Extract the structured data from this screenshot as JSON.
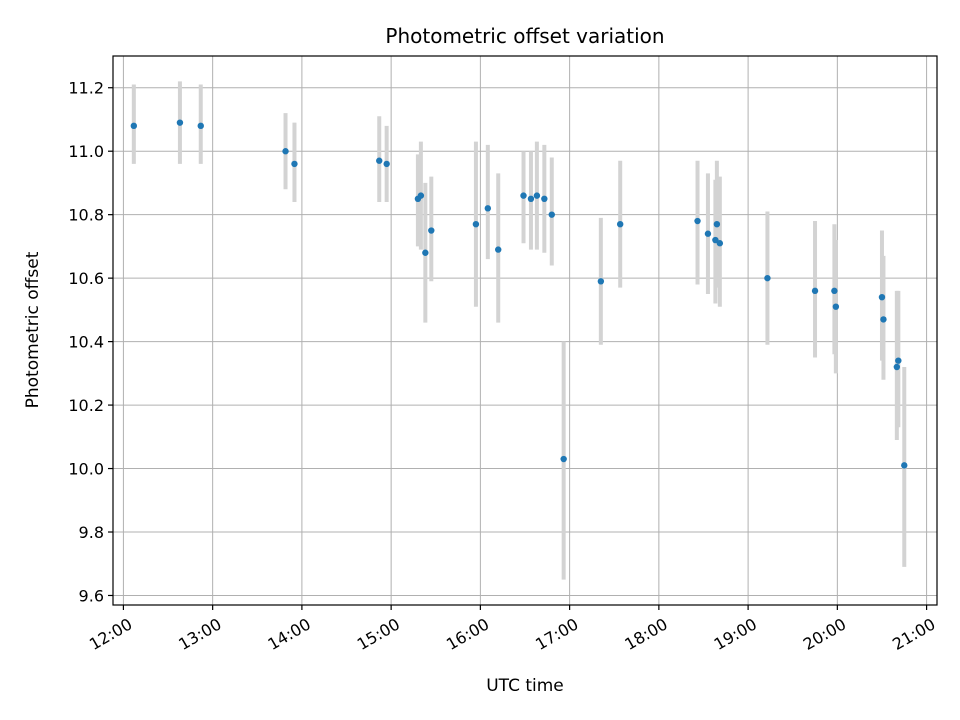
{
  "chart_data": {
    "type": "scatter",
    "title": "Photometric offset variation",
    "xlabel": "UTC time",
    "ylabel": "Photometric offset",
    "x_axis_type": "time",
    "xlim": [
      "11:53",
      "21:07"
    ],
    "ylim": [
      9.57,
      11.3
    ],
    "x_ticks": [
      "12:00",
      "13:00",
      "14:00",
      "15:00",
      "16:00",
      "17:00",
      "18:00",
      "19:00",
      "20:00",
      "21:00"
    ],
    "y_ticks": [
      9.6,
      9.8,
      10.0,
      10.2,
      10.4,
      10.6,
      10.8,
      11.0,
      11.2
    ],
    "grid": true,
    "colors": {
      "marker": "#1f77b4",
      "error_bar": "#d3d3d3",
      "grid": "#b0b0b0"
    },
    "points": [
      {
        "t": "12:07",
        "y": 11.08,
        "lo": 10.96,
        "hi": 11.21
      },
      {
        "t": "12:38",
        "y": 11.09,
        "lo": 10.96,
        "hi": 11.22
      },
      {
        "t": "12:52",
        "y": 11.08,
        "lo": 10.96,
        "hi": 11.21
      },
      {
        "t": "13:49",
        "y": 11.0,
        "lo": 10.88,
        "hi": 11.12
      },
      {
        "t": "13:55",
        "y": 10.96,
        "lo": 10.84,
        "hi": 11.09
      },
      {
        "t": "14:52",
        "y": 10.97,
        "lo": 10.84,
        "hi": 11.11
      },
      {
        "t": "14:57",
        "y": 10.96,
        "lo": 10.84,
        "hi": 11.08
      },
      {
        "t": "15:18",
        "y": 10.85,
        "lo": 10.7,
        "hi": 10.99
      },
      {
        "t": "15:20",
        "y": 10.86,
        "lo": 10.69,
        "hi": 11.03
      },
      {
        "t": "15:23",
        "y": 10.68,
        "lo": 10.46,
        "hi": 10.9
      },
      {
        "t": "15:27",
        "y": 10.75,
        "lo": 10.59,
        "hi": 10.92
      },
      {
        "t": "15:57",
        "y": 10.77,
        "lo": 10.51,
        "hi": 11.03
      },
      {
        "t": "16:05",
        "y": 10.82,
        "lo": 10.66,
        "hi": 11.02
      },
      {
        "t": "16:12",
        "y": 10.69,
        "lo": 10.46,
        "hi": 10.93
      },
      {
        "t": "16:29",
        "y": 10.86,
        "lo": 10.71,
        "hi": 11.0
      },
      {
        "t": "16:34",
        "y": 10.85,
        "lo": 10.69,
        "hi": 11.0
      },
      {
        "t": "16:38",
        "y": 10.86,
        "lo": 10.69,
        "hi": 11.03
      },
      {
        "t": "16:43",
        "y": 10.85,
        "lo": 10.68,
        "hi": 11.02
      },
      {
        "t": "16:48",
        "y": 10.8,
        "lo": 10.64,
        "hi": 10.98
      },
      {
        "t": "16:56",
        "y": 10.03,
        "lo": 9.65,
        "hi": 10.4
      },
      {
        "t": "17:21",
        "y": 10.59,
        "lo": 10.39,
        "hi": 10.79
      },
      {
        "t": "17:34",
        "y": 10.77,
        "lo": 10.57,
        "hi": 10.97
      },
      {
        "t": "18:26",
        "y": 10.78,
        "lo": 10.58,
        "hi": 10.97
      },
      {
        "t": "18:33",
        "y": 10.74,
        "lo": 10.55,
        "hi": 10.93
      },
      {
        "t": "18:38",
        "y": 10.72,
        "lo": 10.52,
        "hi": 10.91
      },
      {
        "t": "18:39",
        "y": 10.77,
        "lo": 10.57,
        "hi": 10.97
      },
      {
        "t": "18:41",
        "y": 10.71,
        "lo": 10.51,
        "hi": 10.92
      },
      {
        "t": "19:13",
        "y": 10.6,
        "lo": 10.39,
        "hi": 10.81
      },
      {
        "t": "19:45",
        "y": 10.56,
        "lo": 10.35,
        "hi": 10.78
      },
      {
        "t": "19:58",
        "y": 10.56,
        "lo": 10.36,
        "hi": 10.77
      },
      {
        "t": "19:59",
        "y": 10.51,
        "lo": 10.3,
        "hi": 10.72
      },
      {
        "t": "20:30",
        "y": 10.54,
        "lo": 10.34,
        "hi": 10.75
      },
      {
        "t": "20:31",
        "y": 10.47,
        "lo": 10.28,
        "hi": 10.67
      },
      {
        "t": "20:40",
        "y": 10.32,
        "lo": 10.09,
        "hi": 10.56
      },
      {
        "t": "20:41",
        "y": 10.34,
        "lo": 10.13,
        "hi": 10.56
      },
      {
        "t": "20:45",
        "y": 10.01,
        "lo": 9.69,
        "hi": 10.32
      }
    ]
  }
}
